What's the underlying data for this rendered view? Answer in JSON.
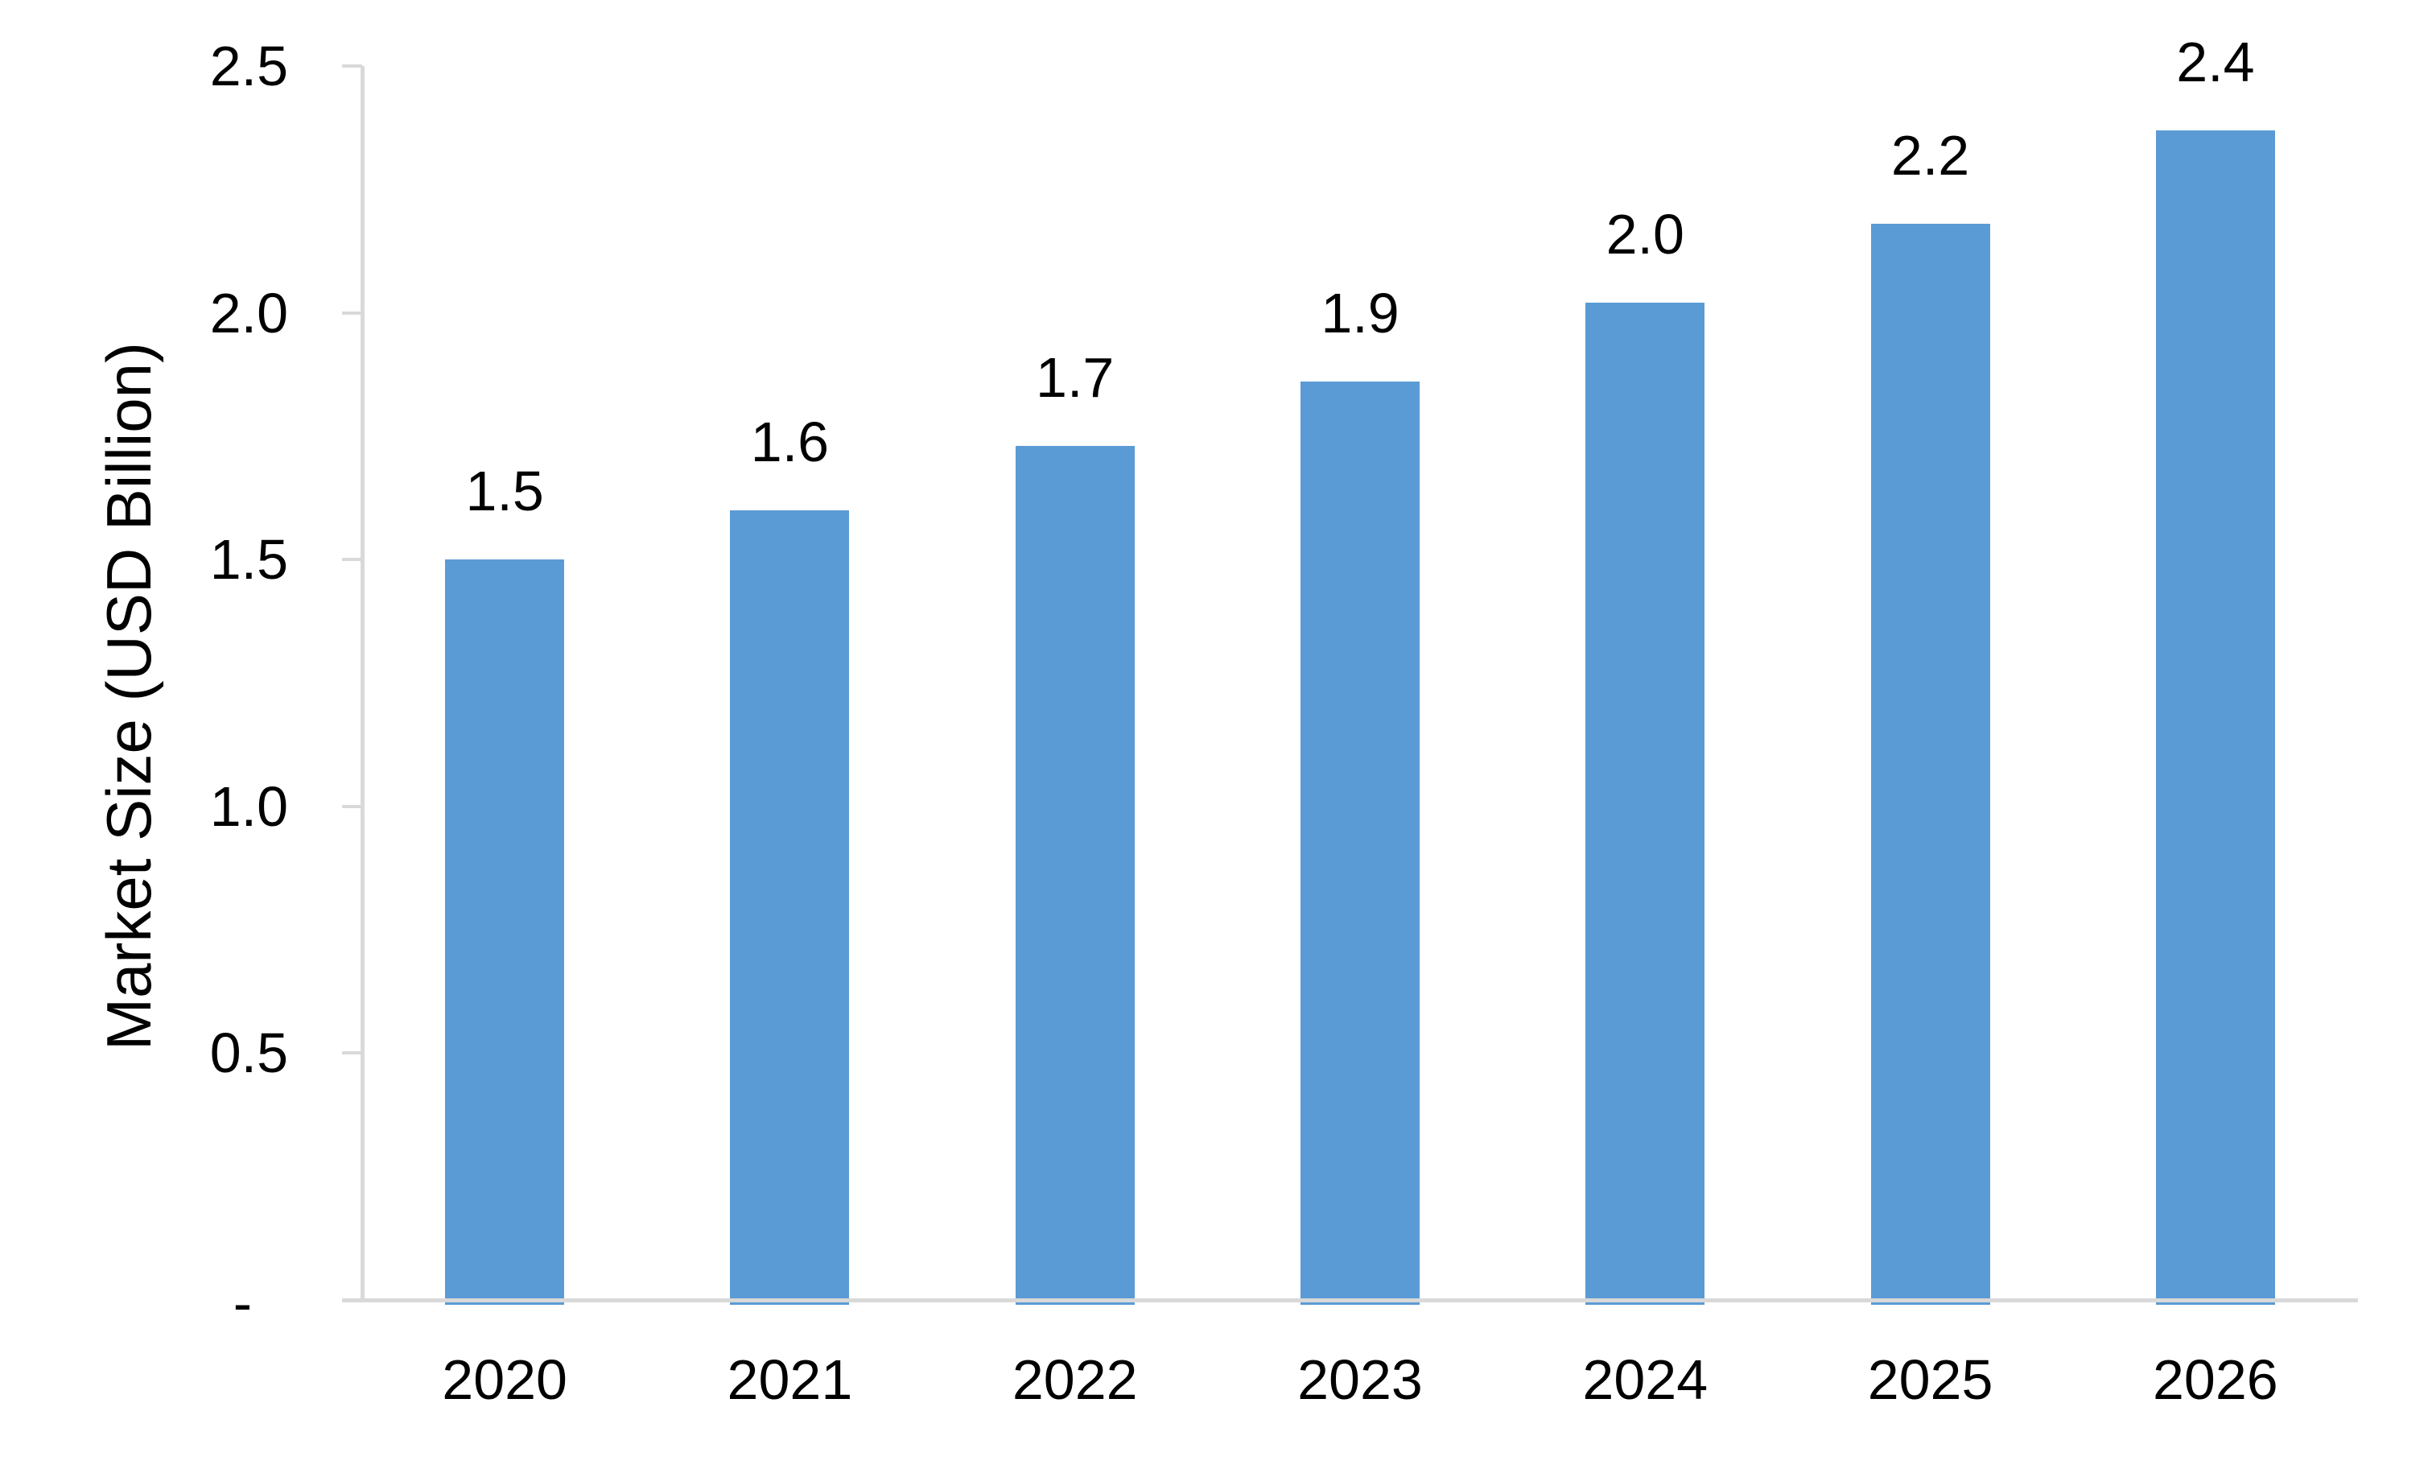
{
  "chart_data": {
    "type": "bar",
    "title": "",
    "xlabel": "",
    "ylabel": "Market Size (USD Billion)",
    "categories": [
      "2020",
      "2021",
      "2022",
      "2023",
      "2024",
      "2025",
      "2026"
    ],
    "series": [
      {
        "name": "Market Size (USD Billion)",
        "values": [
          1.5,
          1.6,
          1.7,
          1.9,
          2.0,
          2.2,
          2.4
        ]
      }
    ],
    "data_labels": [
      "1.5",
      "1.6",
      "1.7",
      "1.9",
      "2.0",
      "2.2",
      "2.4"
    ],
    "values_precise": [
      1.5,
      1.6,
      1.73,
      1.86,
      2.02,
      2.18,
      2.37
    ],
    "ylim": [
      0,
      2.5
    ],
    "y_ticks": [
      {
        "value": 2.5,
        "label": "2.5"
      },
      {
        "value": 2.0,
        "label": "2.0"
      },
      {
        "value": 1.5,
        "label": "1.5"
      },
      {
        "value": 1.0,
        "label": "1.0"
      },
      {
        "value": 0.5,
        "label": "0.5"
      },
      {
        "value": 0.0,
        "label": "-"
      }
    ],
    "grid": false,
    "legend": false,
    "colors": {
      "bar": "#5B9BD5",
      "axis": "#D9D9D9",
      "text": "#000000",
      "background": "#FFFFFF"
    }
  }
}
